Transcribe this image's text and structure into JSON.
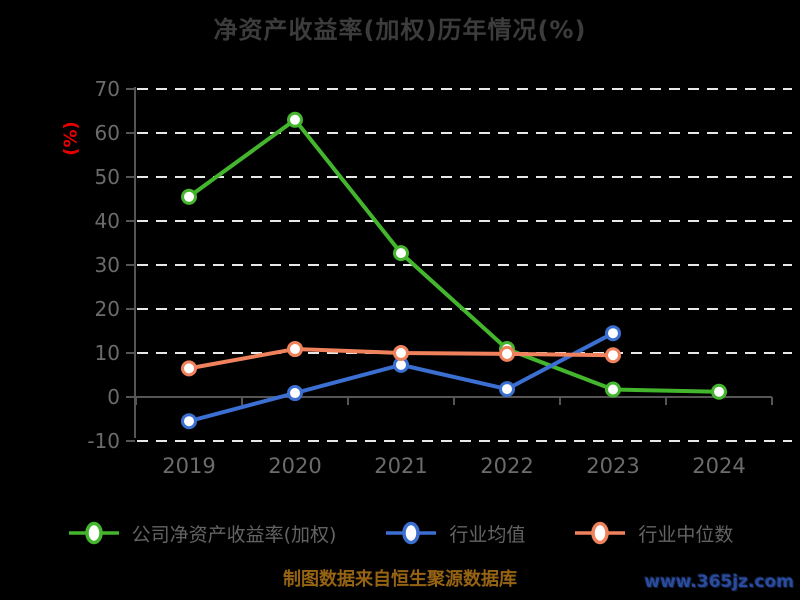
{
  "title": "净资产收益率(加权)历年情况(%)",
  "chart_data": {
    "type": "line",
    "title": "净资产收益率(加权)历年情况(%)",
    "categories": [
      "2019",
      "2020",
      "2021",
      "2022",
      "2023",
      "2024"
    ],
    "series": [
      {
        "name": "公司净资产收益率(加权)",
        "color": "#44b62e",
        "values": [
          45.5,
          63.0,
          32.7,
          10.9,
          1.7,
          1.2
        ]
      },
      {
        "name": "行业均值",
        "color": "#3c6fd2",
        "values": [
          -5.5,
          0.9,
          7.3,
          1.8,
          14.5,
          null
        ]
      },
      {
        "name": "行业中位数",
        "color": "#ef825c",
        "values": [
          6.5,
          10.9,
          10.0,
          9.8,
          9.5,
          null
        ]
      }
    ],
    "ylabel": "(%)",
    "ylim": [
      -10,
      70
    ],
    "y_ticks": [
      70,
      60,
      50,
      40,
      30,
      20,
      10,
      0,
      -10
    ],
    "grid": "horizontal dashed white lines on black, x-axis drawn at 0",
    "marker": "circle, white fill, colored ring",
    "legend_position": "bottom"
  },
  "colors": {
    "background": "#000000",
    "title": "#3c3c3c",
    "tick_label": "#6b6b6b",
    "axis": "#555555",
    "gridline": "#e8e8e8",
    "ylabel": "#e60000",
    "legend_text": "#636363",
    "caption": "#966312",
    "watermark": "#2b4b9b"
  },
  "footer": {
    "caption": "制图数据来自恒生聚源数据库",
    "watermark": "www.365jz.com"
  }
}
